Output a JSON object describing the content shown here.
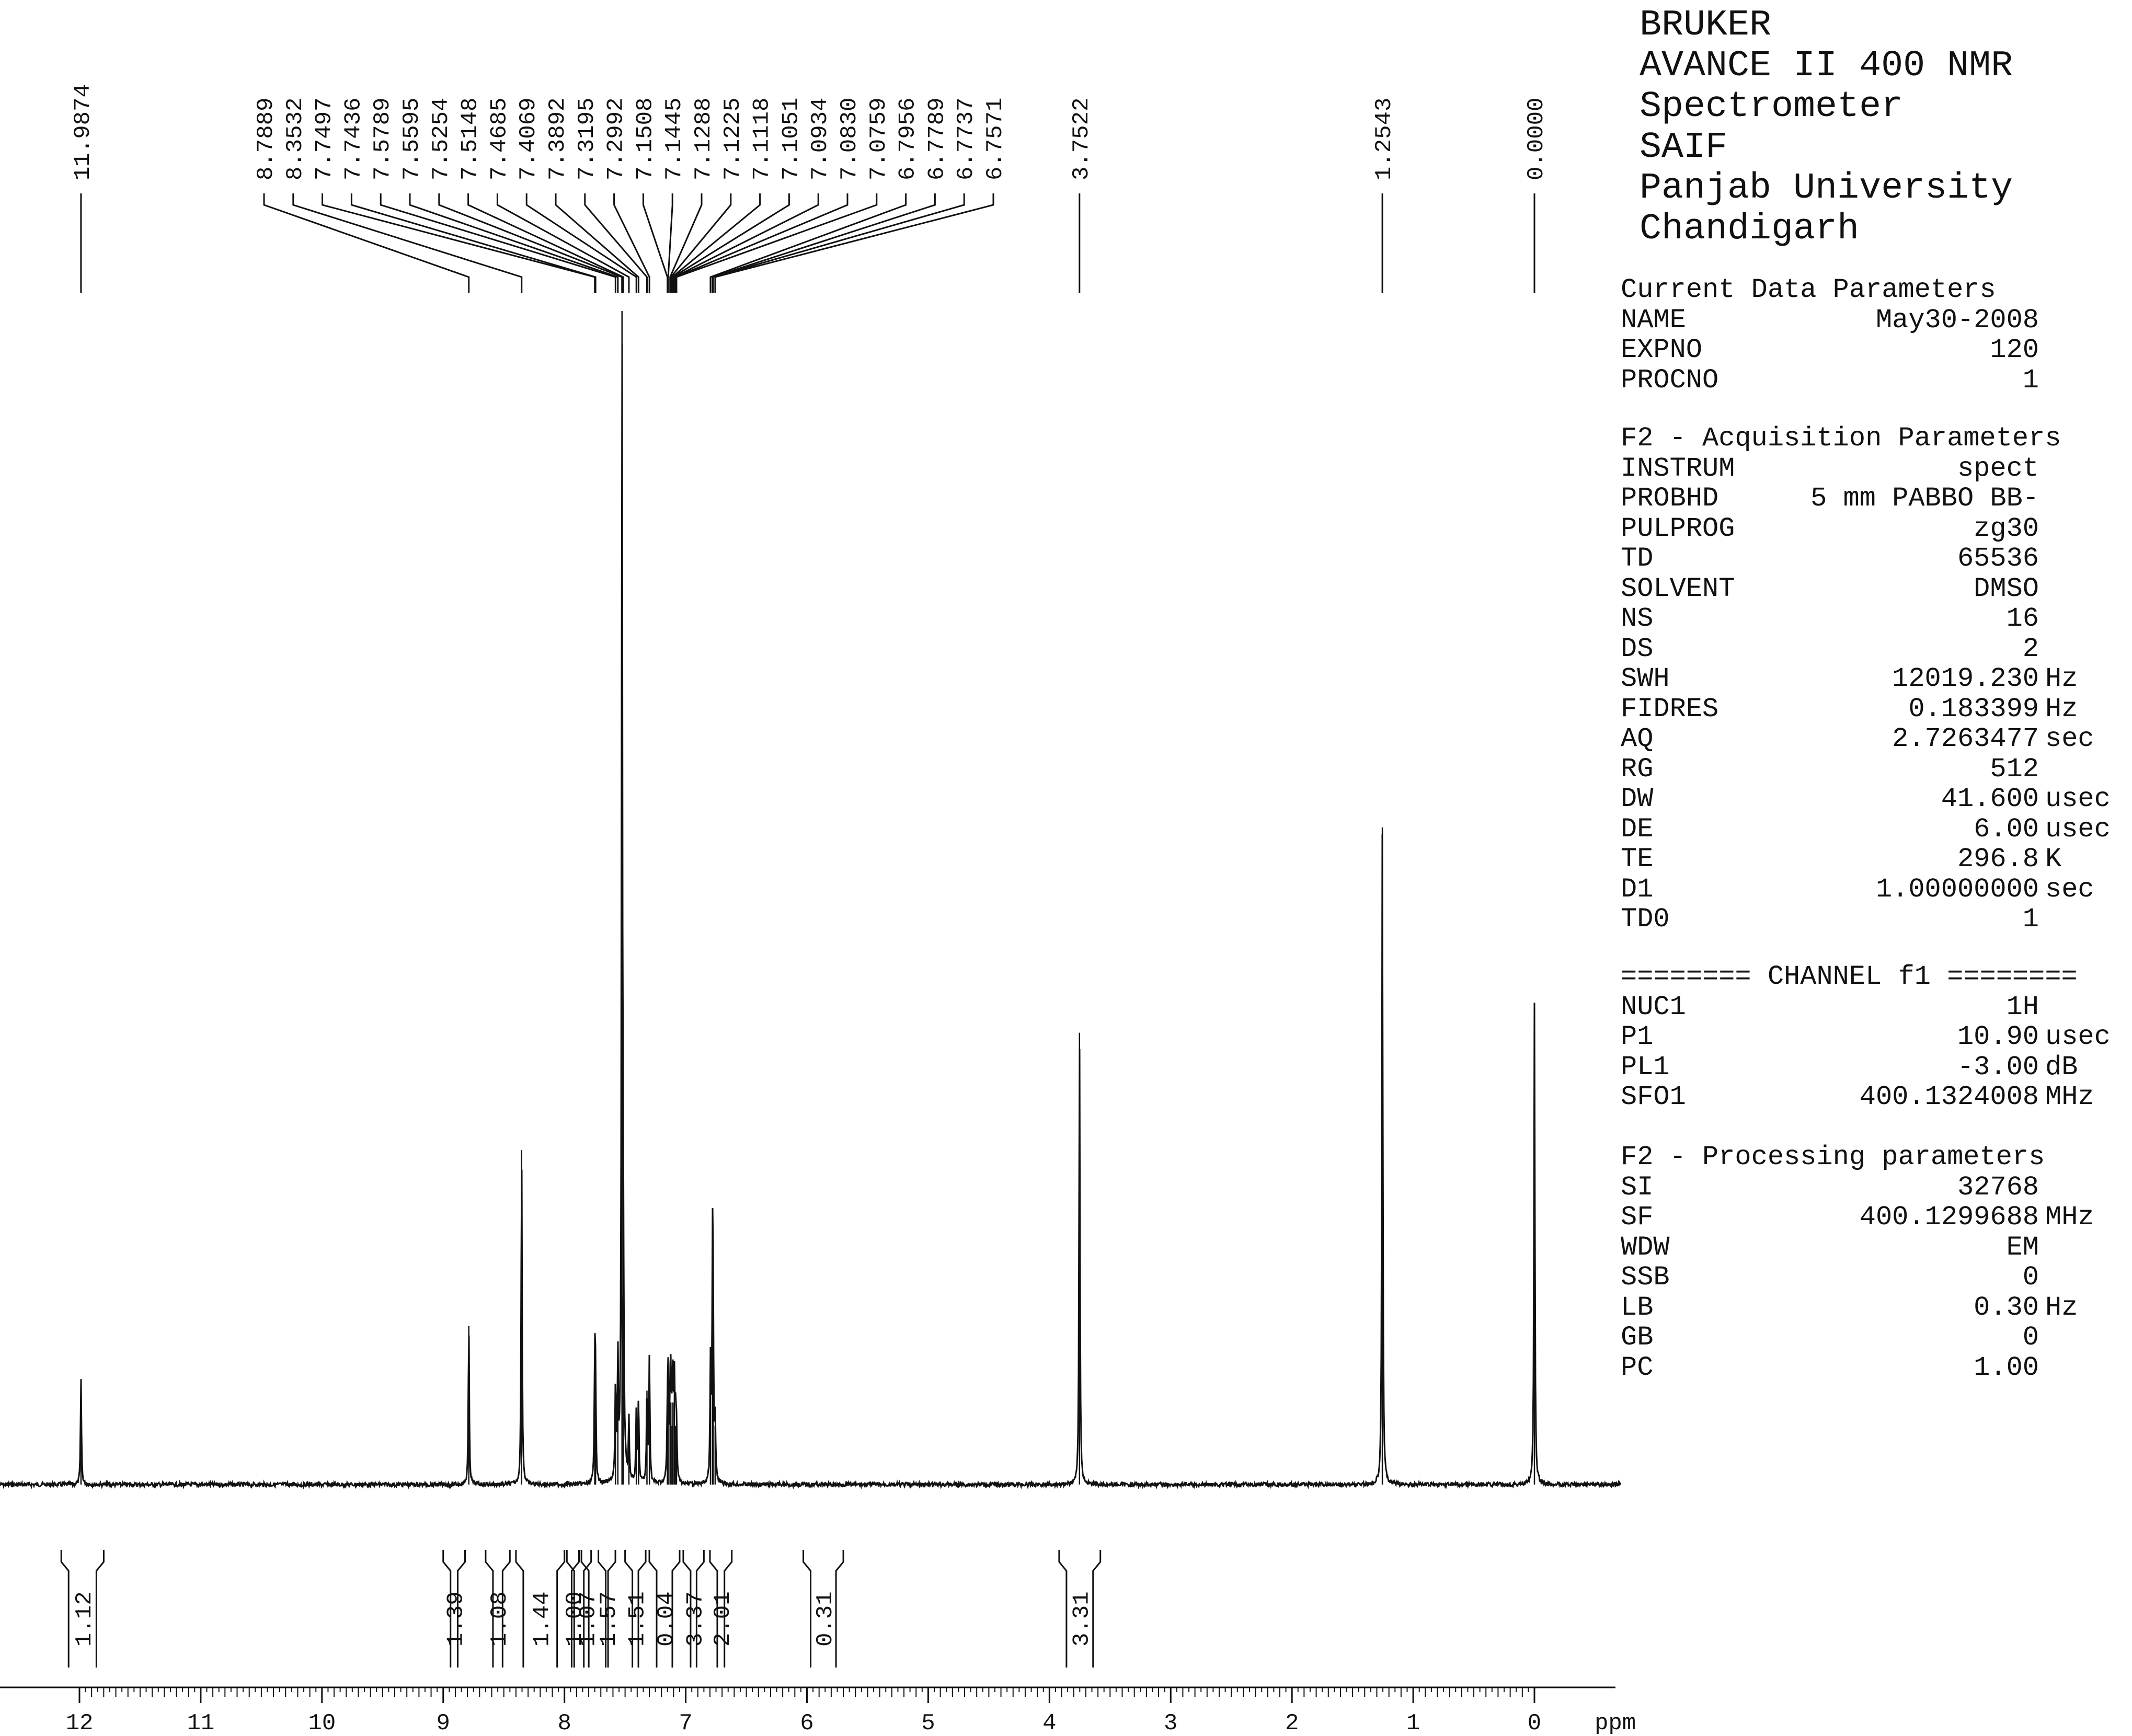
{
  "colors": {
    "ink": "#111111",
    "background": "#ffffff"
  },
  "instrument_header": [
    "BRUKER",
    "AVANCE II 400 NMR",
    "Spectrometer",
    "SAIF",
    "Panjab University",
    "Chandigarh"
  ],
  "parameters": [
    {
      "title": "Current Data Parameters",
      "rows": [
        {
          "key": "NAME",
          "value": "May30-2008",
          "unit": ""
        },
        {
          "key": "EXPNO",
          "value": "120",
          "unit": ""
        },
        {
          "key": "PROCNO",
          "value": "1",
          "unit": ""
        }
      ]
    },
    {
      "title": "F2 - Acquisition Parameters",
      "rows": [
        {
          "key": "INSTRUM",
          "value": "spect",
          "unit": ""
        },
        {
          "key": "PROBHD",
          "value": "5 mm PABBO BB-",
          "unit": ""
        },
        {
          "key": "PULPROG",
          "value": "zg30",
          "unit": ""
        },
        {
          "key": "TD",
          "value": "65536",
          "unit": ""
        },
        {
          "key": "SOLVENT",
          "value": "DMSO",
          "unit": ""
        },
        {
          "key": "NS",
          "value": "16",
          "unit": ""
        },
        {
          "key": "DS",
          "value": "2",
          "unit": ""
        },
        {
          "key": "SWH",
          "value": "12019.230",
          "unit": "Hz"
        },
        {
          "key": "FIDRES",
          "value": "0.183399",
          "unit": "Hz"
        },
        {
          "key": "AQ",
          "value": "2.7263477",
          "unit": "sec"
        },
        {
          "key": "RG",
          "value": "512",
          "unit": ""
        },
        {
          "key": "DW",
          "value": "41.600",
          "unit": "usec"
        },
        {
          "key": "DE",
          "value": "6.00",
          "unit": "usec"
        },
        {
          "key": "TE",
          "value": "296.8",
          "unit": "K"
        },
        {
          "key": "D1",
          "value": "1.00000000",
          "unit": "sec"
        },
        {
          "key": "TD0",
          "value": "1",
          "unit": ""
        }
      ]
    },
    {
      "title": "======== CHANNEL f1 ========",
      "rows": [
        {
          "key": "NUC1",
          "value": "1H",
          "unit": ""
        },
        {
          "key": "P1",
          "value": "10.90",
          "unit": "usec"
        },
        {
          "key": "PL1",
          "value": "-3.00",
          "unit": "dB"
        },
        {
          "key": "SFO1",
          "value": "400.1324008",
          "unit": "MHz"
        }
      ]
    },
    {
      "title": "F2 - Processing parameters",
      "rows": [
        {
          "key": "SI",
          "value": "32768",
          "unit": ""
        },
        {
          "key": "SF",
          "value": "400.1299688",
          "unit": "MHz"
        },
        {
          "key": "WDW",
          "value": "EM",
          "unit": ""
        },
        {
          "key": "SSB",
          "value": "0",
          "unit": ""
        },
        {
          "key": "LB",
          "value": "0.30",
          "unit": "Hz"
        },
        {
          "key": "GB",
          "value": "0",
          "unit": ""
        },
        {
          "key": "PC",
          "value": "1.00",
          "unit": ""
        }
      ]
    }
  ],
  "chart_data": {
    "type": "line",
    "xlabel": "ppm",
    "xlim": [
      12.0,
      0.0
    ],
    "x_reversed": true,
    "x_ticks": [
      "12",
      "11",
      "10",
      "9",
      "8",
      "7",
      "6",
      "5",
      "4",
      "3",
      "2",
      "1",
      "0"
    ],
    "peaks": [
      {
        "ppm": 11.9874,
        "height": 0.09
      },
      {
        "ppm": 8.7889,
        "height": 0.135
      },
      {
        "ppm": 8.3532,
        "height": 0.285
      },
      {
        "ppm": 7.7497,
        "height": 0.1
      },
      {
        "ppm": 7.7436,
        "height": 0.08
      },
      {
        "ppm": 7.5789,
        "height": 0.08
      },
      {
        "ppm": 7.5595,
        "height": 0.1
      },
      {
        "ppm": 7.5254,
        "height": 1.0
      },
      {
        "ppm": 7.5148,
        "height": 0.16
      },
      {
        "ppm": 7.4685,
        "height": 0.05
      },
      {
        "ppm": 7.4069,
        "height": 0.06
      },
      {
        "ppm": 7.3892,
        "height": 0.07
      },
      {
        "ppm": 7.3195,
        "height": 0.08
      },
      {
        "ppm": 7.2992,
        "height": 0.11
      },
      {
        "ppm": 7.1508,
        "height": 0.05
      },
      {
        "ppm": 7.1445,
        "height": 0.08
      },
      {
        "ppm": 7.1288,
        "height": 0.06
      },
      {
        "ppm": 7.1225,
        "height": 0.07
      },
      {
        "ppm": 7.1118,
        "height": 0.05
      },
      {
        "ppm": 7.1051,
        "height": 0.07
      },
      {
        "ppm": 7.0934,
        "height": 0.08
      },
      {
        "ppm": 7.083,
        "height": 0.05
      },
      {
        "ppm": 7.0759,
        "height": 0.04
      },
      {
        "ppm": 6.7956,
        "height": 0.1
      },
      {
        "ppm": 6.7789,
        "height": 0.17
      },
      {
        "ppm": 6.7737,
        "height": 0.12
      },
      {
        "ppm": 6.7571,
        "height": 0.05
      },
      {
        "ppm": 3.7522,
        "height": 0.385
      },
      {
        "ppm": 1.2543,
        "height": 0.56
      },
      {
        "ppm": 0.0,
        "height": 0.41
      }
    ],
    "peak_labels": [
      "11.9874",
      "8.7889",
      "8.3532",
      "7.7497",
      "7.7436",
      "7.5789",
      "7.5595",
      "7.5254",
      "7.5148",
      "7.4685",
      "7.4069",
      "7.3892",
      "7.3195",
      "7.2992",
      "7.1508",
      "7.1445",
      "7.1288",
      "7.1225",
      "7.1118",
      "7.1051",
      "7.0934",
      "7.0830",
      "7.0759",
      "6.7956",
      "6.7789",
      "6.7737",
      "6.7571",
      "3.7522",
      "1.2543",
      "0.0000"
    ],
    "integrals": [
      {
        "label": "1.12",
        "from": 12.15,
        "to": 11.8
      },
      {
        "label": "1.39",
        "from": 9.0,
        "to": 8.82
      },
      {
        "label": "1.08",
        "from": 8.65,
        "to": 8.45
      },
      {
        "label": "1.44",
        "from": 8.4,
        "to": 8.0
      },
      {
        "label": "1.00",
        "from": 7.98,
        "to": 7.88
      },
      {
        "label": "1.07",
        "from": 7.86,
        "to": 7.78
      },
      {
        "label": "1.57",
        "from": 7.72,
        "to": 7.58
      },
      {
        "label": "1.51",
        "from": 7.5,
        "to": 7.33
      },
      {
        "label": "0.04",
        "from": 7.3,
        "to": 7.05
      },
      {
        "label": "3.37",
        "from": 7.02,
        "to": 6.85
      },
      {
        "label": "2.01",
        "from": 6.8,
        "to": 6.62
      },
      {
        "label": "0.31",
        "from": 6.03,
        "to": 5.7
      },
      {
        "label": "3.31",
        "from": 3.92,
        "to": 3.58
      }
    ]
  }
}
